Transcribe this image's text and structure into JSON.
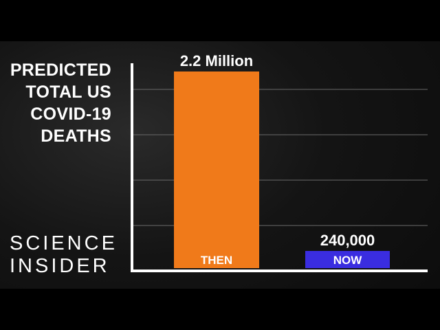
{
  "brand": {
    "line1": "SCIENCE",
    "line2": "INSIDER"
  },
  "chart_data": {
    "type": "bar",
    "title_lines": [
      "PREDICTED",
      "TOTAL US",
      "COVID-19",
      "DEATHS"
    ],
    "categories": [
      "THEN",
      "NOW"
    ],
    "values": [
      2200000,
      240000
    ],
    "value_labels": [
      "2.2 Million",
      "240,000"
    ],
    "bar_colors": [
      "#f07a1a",
      "#3a2de0"
    ],
    "category_label_color": "#ffffff",
    "ylim": [
      0,
      2500000
    ],
    "grid": true,
    "gridlines": 5
  }
}
